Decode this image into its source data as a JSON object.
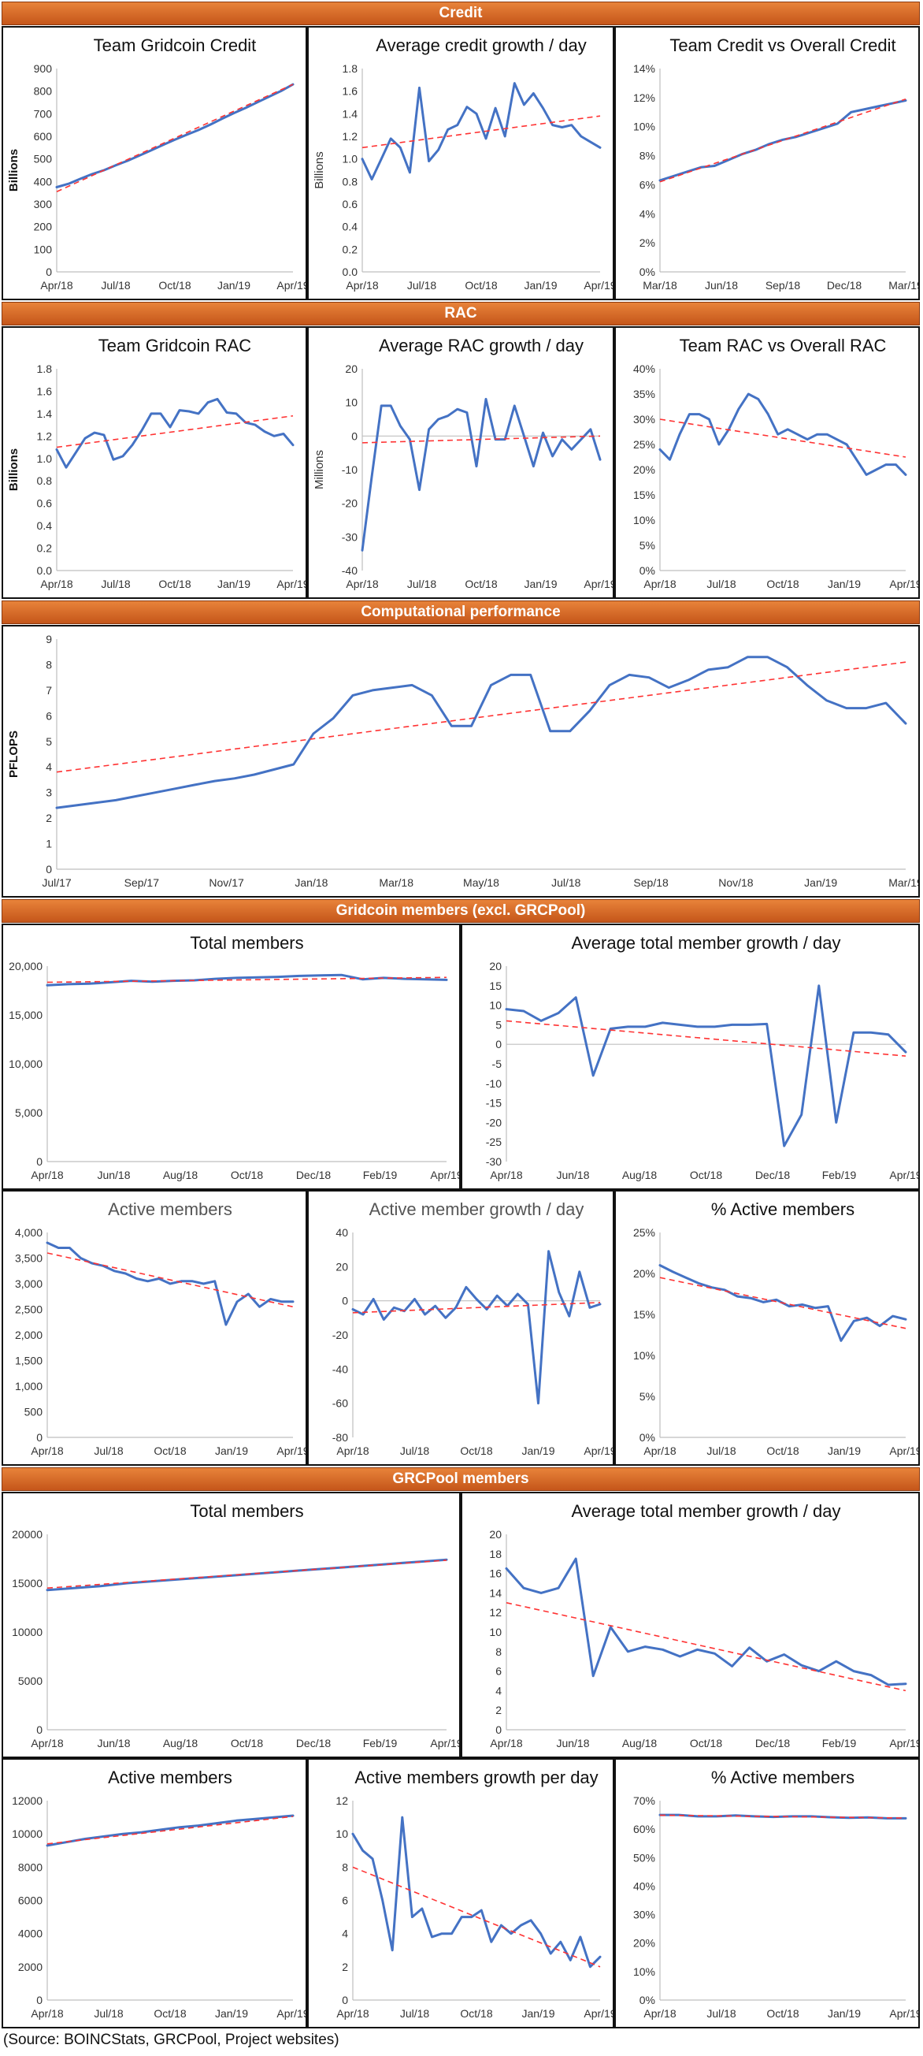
{
  "sections": [
    {
      "title": "Credit"
    },
    {
      "title": "RAC"
    },
    {
      "title": "Computational performance"
    },
    {
      "title": "Gridcoin members (excl. GRCPool)"
    },
    {
      "title": "GRCPool members"
    }
  ],
  "source": "(Source: BOINCStats, GRCPool, Project websites)",
  "colors": {
    "series": "#4472c4",
    "trend": "#ff3333",
    "header": "#d9662a"
  },
  "chart_data": [
    {
      "id": "team_credit",
      "type": "line",
      "title": "Team Gridcoin Credit",
      "ylabel": "Billions",
      "ylabel_bold": true,
      "ylim": [
        0,
        900
      ],
      "yticks": [
        0,
        100,
        200,
        300,
        400,
        500,
        600,
        700,
        800,
        900
      ],
      "ytick_labels": [
        "0",
        "100",
        "200",
        "300",
        "400",
        "500",
        "600",
        "700",
        "800",
        "900"
      ],
      "xtick_labels": [
        "Apr/18",
        "Jul/18",
        "Oct/18",
        "Jan/19",
        "Apr/19"
      ],
      "values": [
        375,
        390,
        412,
        433,
        450,
        472,
        492,
        515,
        538,
        562,
        585,
        607,
        628,
        652,
        678,
        703,
        726,
        751,
        776,
        801,
        830
      ],
      "trend": [
        355,
        830
      ],
      "trend_style": "purple-dash"
    },
    {
      "id": "avg_credit_growth",
      "type": "line",
      "title": "Average credit growth / day",
      "ylabel": "Billions",
      "ylabel_bold": false,
      "ylim": [
        0,
        1.8
      ],
      "yticks": [
        0,
        0.2,
        0.4,
        0.6,
        0.8,
        1.0,
        1.2,
        1.4,
        1.6,
        1.8
      ],
      "ytick_labels": [
        "0.0",
        "0.2",
        "0.4",
        "0.6",
        "0.8",
        "1.0",
        "1.2",
        "1.4",
        "1.6",
        "1.8"
      ],
      "xtick_labels": [
        "Apr/18",
        "Jul/18",
        "Oct/18",
        "Jan/19",
        "Apr/19"
      ],
      "values": [
        1.0,
        0.82,
        1.0,
        1.18,
        1.1,
        0.88,
        1.63,
        0.98,
        1.08,
        1.26,
        1.3,
        1.46,
        1.4,
        1.18,
        1.45,
        1.2,
        1.67,
        1.48,
        1.58,
        1.45,
        1.3,
        1.28,
        1.3,
        1.2,
        1.15,
        1.1
      ],
      "trend": [
        1.1,
        1.38
      ]
    },
    {
      "id": "credit_share",
      "type": "line",
      "title": "Team Credit vs Overall Credit",
      "ylim": [
        0,
        14
      ],
      "yticks": [
        0,
        2,
        4,
        6,
        8,
        10,
        12,
        14
      ],
      "ytick_labels": [
        "0%",
        "2%",
        "4%",
        "6%",
        "8%",
        "10%",
        "12%",
        "14%"
      ],
      "xtick_labels": [
        "Mar/18",
        "Jun/18",
        "Sep/18",
        "Dec/18",
        "Mar/19"
      ],
      "values": [
        6.3,
        6.6,
        6.9,
        7.2,
        7.3,
        7.7,
        8.1,
        8.4,
        8.8,
        9.1,
        9.3,
        9.6,
        9.9,
        10.2,
        11.0,
        11.2,
        11.4,
        11.6,
        11.8
      ],
      "trend": [
        6.2,
        11.9
      ]
    },
    {
      "id": "team_rac",
      "type": "line",
      "title": "Team Gridcoin RAC",
      "ylabel": "Billions",
      "ylabel_bold": true,
      "ylim": [
        0,
        1.8
      ],
      "yticks": [
        0,
        0.2,
        0.4,
        0.6,
        0.8,
        1.0,
        1.2,
        1.4,
        1.6,
        1.8
      ],
      "ytick_labels": [
        "0.0",
        "0.2",
        "0.4",
        "0.6",
        "0.8",
        "1.0",
        "1.2",
        "1.4",
        "1.6",
        "1.8"
      ],
      "xtick_labels": [
        "Apr/18",
        "Jul/18",
        "Oct/18",
        "Jan/19",
        "Apr/19"
      ],
      "values": [
        1.08,
        0.92,
        1.05,
        1.18,
        1.23,
        1.21,
        0.99,
        1.02,
        1.12,
        1.25,
        1.4,
        1.4,
        1.28,
        1.43,
        1.42,
        1.4,
        1.5,
        1.53,
        1.41,
        1.4,
        1.32,
        1.3,
        1.24,
        1.2,
        1.22,
        1.12
      ],
      "trend": [
        1.1,
        1.38
      ]
    },
    {
      "id": "avg_rac_growth",
      "type": "line",
      "title": "Average RAC growth / day",
      "ylabel": "Millions",
      "ylabel_bold": false,
      "ylim": [
        -40,
        20
      ],
      "yticks": [
        -40,
        -30,
        -20,
        -10,
        0,
        10,
        20
      ],
      "ytick_labels": [
        "-40",
        "-30",
        "-20",
        "-10",
        "0",
        "10",
        "20"
      ],
      "xtick_labels": [
        "Apr/18",
        "Jul/18",
        "Oct/18",
        "Jan/19",
        "Apr/19"
      ],
      "values": [
        -34,
        -12,
        9,
        9,
        3,
        -1,
        -16,
        2,
        5,
        6,
        8,
        7,
        -9,
        11,
        -1,
        -1,
        9,
        0,
        -9,
        1,
        -6,
        -1,
        -4,
        -1,
        2,
        -7
      ],
      "trend": [
        -2,
        0
      ]
    },
    {
      "id": "rac_share",
      "type": "line",
      "title": "Team RAC vs Overall RAC",
      "ylim": [
        0,
        40
      ],
      "yticks": [
        0,
        5,
        10,
        15,
        20,
        25,
        30,
        35,
        40
      ],
      "ytick_labels": [
        "0%",
        "5%",
        "10%",
        "15%",
        "20%",
        "25%",
        "30%",
        "35%",
        "40%"
      ],
      "xtick_labels": [
        "Apr/18",
        "Jul/18",
        "Oct/18",
        "Jan/19",
        "Apr/19"
      ],
      "values": [
        24,
        22,
        27,
        31,
        31,
        30,
        25,
        28,
        32,
        35,
        34,
        31,
        27,
        28,
        27,
        26,
        27,
        27,
        26,
        25,
        22,
        19,
        20,
        21,
        21,
        19
      ],
      "trend": [
        30,
        22.5
      ]
    },
    {
      "id": "pflops",
      "type": "line",
      "ylabel": "PFLOPS",
      "ylabel_bold": true,
      "ylim": [
        0,
        9
      ],
      "yticks": [
        0,
        1,
        2,
        3,
        4,
        5,
        6,
        7,
        8,
        9
      ],
      "ytick_labels": [
        "0",
        "1",
        "2",
        "3",
        "4",
        "5",
        "6",
        "7",
        "8",
        "9"
      ],
      "xtick_labels": [
        "Jul/17",
        "Sep/17",
        "Nov/17",
        "Jan/18",
        "Mar/18",
        "May/18",
        "Jul/18",
        "Sep/18",
        "Nov/18",
        "Jan/19",
        "Mar/19"
      ],
      "values": [
        2.4,
        2.5,
        2.6,
        2.7,
        2.85,
        3.0,
        3.15,
        3.3,
        3.45,
        3.55,
        3.7,
        3.9,
        4.1,
        5.3,
        5.9,
        6.8,
        7.0,
        7.1,
        7.2,
        6.8,
        5.6,
        5.6,
        7.2,
        7.6,
        7.6,
        5.4,
        5.4,
        6.2,
        7.2,
        7.6,
        7.5,
        7.1,
        7.4,
        7.8,
        7.9,
        8.3,
        8.3,
        7.9,
        7.2,
        6.6,
        6.3,
        6.3,
        6.5,
        5.7
      ],
      "trend": [
        3.8,
        8.1
      ]
    },
    {
      "id": "grc_total",
      "type": "line",
      "title": "Total members",
      "ylim": [
        0,
        20000
      ],
      "yticks": [
        0,
        5000,
        10000,
        15000,
        20000
      ],
      "ytick_labels": [
        "0",
        "5,000",
        "10,000",
        "15,000",
        "20,000"
      ],
      "xtick_labels": [
        "Apr/18",
        "Jun/18",
        "Aug/18",
        "Oct/18",
        "Dec/18",
        "Feb/19",
        "Apr/19"
      ],
      "values": [
        18050,
        18150,
        18200,
        18350,
        18500,
        18400,
        18500,
        18550,
        18700,
        18800,
        18850,
        18900,
        19000,
        19050,
        19100,
        18650,
        18800,
        18700,
        18650,
        18600
      ],
      "trend": [
        18350,
        18850
      ]
    },
    {
      "id": "grc_total_growth",
      "type": "line",
      "title": "Average total member growth / day",
      "ylim": [
        -30,
        20
      ],
      "yticks": [
        -30,
        -25,
        -20,
        -15,
        -10,
        -5,
        0,
        5,
        10,
        15,
        20
      ],
      "ytick_labels": [
        "-30",
        "-25",
        "-20",
        "-15",
        "-10",
        "-5",
        "0",
        "5",
        "10",
        "15",
        "20"
      ],
      "xtick_labels": [
        "Apr/18",
        "Jun/18",
        "Aug/18",
        "Oct/18",
        "Dec/18",
        "Feb/19",
        "Apr/19"
      ],
      "values": [
        9,
        8.5,
        6,
        8,
        12,
        -8,
        4,
        4.5,
        4.5,
        5.5,
        5,
        4.5,
        4.5,
        5,
        5,
        5.2,
        -26,
        -18,
        15,
        -20,
        3,
        3,
        2.5,
        -2
      ],
      "trend": [
        6,
        -3
      ]
    },
    {
      "id": "grc_active",
      "type": "line",
      "title": "Active members",
      "title_grey": true,
      "ylim": [
        0,
        4000
      ],
      "yticks": [
        0,
        500,
        1000,
        1500,
        2000,
        2500,
        3000,
        3500,
        4000
      ],
      "ytick_labels": [
        "0",
        "500",
        "1,000",
        "1,500",
        "2,000",
        "2,500",
        "3,000",
        "3,500",
        "4,000"
      ],
      "xtick_labels": [
        "Apr/18",
        "Jul/18",
        "Oct/18",
        "Jan/19",
        "Apr/19"
      ],
      "values": [
        3800,
        3700,
        3700,
        3500,
        3400,
        3350,
        3250,
        3200,
        3100,
        3050,
        3100,
        3000,
        3050,
        3050,
        3000,
        3050,
        2200,
        2650,
        2800,
        2550,
        2700,
        2650,
        2650
      ],
      "trend": [
        3600,
        2550
      ]
    },
    {
      "id": "grc_active_growth",
      "type": "line",
      "title": "Active member growth / day",
      "title_grey": true,
      "ylim": [
        -80,
        40
      ],
      "yticks": [
        -80,
        -60,
        -40,
        -20,
        0,
        20,
        40
      ],
      "ytick_labels": [
        "-80",
        "-60",
        "-40",
        "-20",
        "0",
        "20",
        "40"
      ],
      "xtick_labels": [
        "Apr/18",
        "Jul/18",
        "Oct/18",
        "Jan/19",
        "Apr/19"
      ],
      "values": [
        -5,
        -8,
        1,
        -11,
        -4,
        -6,
        1,
        -8,
        -3,
        -10,
        -4,
        8,
        1,
        -5,
        3,
        -3,
        4,
        -2,
        -60,
        29,
        5,
        -9,
        17,
        -4,
        -2
      ],
      "trend": [
        -7,
        -1
      ]
    },
    {
      "id": "grc_active_pct",
      "type": "line",
      "title": "% Active members",
      "ylim": [
        0,
        25
      ],
      "yticks": [
        0,
        5,
        10,
        15,
        20,
        25
      ],
      "ytick_labels": [
        "0%",
        "5%",
        "10%",
        "15%",
        "20%",
        "25%"
      ],
      "xtick_labels": [
        "Apr/18",
        "Jul/18",
        "Oct/18",
        "Jan/19",
        "Apr/19"
      ],
      "values": [
        21,
        20.2,
        19.5,
        18.8,
        18.3,
        18,
        17.2,
        17,
        16.5,
        16.8,
        16,
        16.2,
        15.8,
        16,
        11.8,
        14.2,
        14.6,
        13.6,
        14.8,
        14.4
      ],
      "trend": [
        19.5,
        13.3
      ]
    },
    {
      "id": "pool_total",
      "type": "line",
      "title": "Total members",
      "ylim": [
        0,
        20000
      ],
      "yticks": [
        0,
        5000,
        10000,
        15000,
        20000
      ],
      "ytick_labels": [
        "0",
        "5000",
        "10000",
        "15000",
        "20000"
      ],
      "xtick_labels": [
        "Apr/18",
        "Jun/18",
        "Aug/18",
        "Oct/18",
        "Dec/18",
        "Feb/19",
        "Apr/19"
      ],
      "values": [
        14300,
        14500,
        14700,
        15000,
        15200,
        15400,
        15600,
        15800,
        16000,
        16200,
        16400,
        16600,
        16800,
        17000,
        17200,
        17400
      ],
      "trend": [
        14500,
        17350
      ],
      "trend_style": "purple-dash"
    },
    {
      "id": "pool_total_growth",
      "type": "line",
      "title": "Average total member growth / day",
      "ylim": [
        0,
        20
      ],
      "yticks": [
        0,
        2,
        4,
        6,
        8,
        10,
        12,
        14,
        16,
        18,
        20
      ],
      "ytick_labels": [
        "0",
        "2",
        "4",
        "6",
        "8",
        "10",
        "12",
        "14",
        "16",
        "18",
        "20"
      ],
      "xtick_labels": [
        "Apr/18",
        "Jun/18",
        "Aug/18",
        "Oct/18",
        "Dec/18",
        "Feb/19",
        "Apr/19"
      ],
      "values": [
        16.5,
        14.5,
        14,
        14.5,
        17.5,
        5.5,
        10.5,
        8,
        8.5,
        8.2,
        7.5,
        8.2,
        7.8,
        6.5,
        8.4,
        7,
        7.7,
        6.6,
        6,
        7,
        6,
        5.6,
        4.6,
        4.7
      ],
      "trend": [
        13,
        4
      ]
    },
    {
      "id": "pool_active",
      "type": "line",
      "title": "Active members",
      "ylim": [
        0,
        12000
      ],
      "yticks": [
        0,
        2000,
        4000,
        6000,
        8000,
        10000,
        12000
      ],
      "ytick_labels": [
        "0",
        "2000",
        "4000",
        "6000",
        "8000",
        "10000",
        "12000"
      ],
      "xtick_labels": [
        "Apr/18",
        "Jul/18",
        "Oct/18",
        "Jan/19",
        "Apr/19"
      ],
      "values": [
        9300,
        9500,
        9700,
        9850,
        10000,
        10100,
        10250,
        10400,
        10500,
        10650,
        10800,
        10900,
        11000,
        11100
      ],
      "trend": [
        9400,
        11050
      ],
      "trend_style": "purple-dash"
    },
    {
      "id": "pool_active_growth",
      "type": "line",
      "title": "Active members growth per day",
      "ylim": [
        0,
        12
      ],
      "yticks": [
        0,
        2,
        4,
        6,
        8,
        10,
        12
      ],
      "ytick_labels": [
        "0",
        "2",
        "4",
        "6",
        "8",
        "10",
        "12"
      ],
      "xtick_labels": [
        "Apr/18",
        "Jul/18",
        "Oct/18",
        "Jan/19",
        "Apr/19"
      ],
      "values": [
        10,
        9,
        8.5,
        6,
        3,
        11,
        5,
        5.5,
        3.8,
        4,
        4,
        5,
        5,
        5.4,
        3.5,
        4.5,
        4,
        4.5,
        4.8,
        4,
        2.8,
        3.5,
        2.4,
        3.8,
        2,
        2.6
      ],
      "trend": [
        8,
        2
      ]
    },
    {
      "id": "pool_active_pct",
      "type": "line",
      "title": "% Active members",
      "ylim": [
        0,
        70
      ],
      "yticks": [
        0,
        10,
        20,
        30,
        40,
        50,
        60,
        70
      ],
      "ytick_labels": [
        "0%",
        "10%",
        "20%",
        "30%",
        "40%",
        "50%",
        "60%",
        "70%"
      ],
      "xtick_labels": [
        "Apr/18",
        "Jul/18",
        "Oct/18",
        "Jan/19",
        "Apr/19"
      ],
      "values": [
        65,
        65,
        64.5,
        64.5,
        64.8,
        64.5,
        64.3,
        64.5,
        64.5,
        64.2,
        64,
        64.1,
        63.8,
        63.8
      ],
      "trend": [
        64.9,
        63.9
      ],
      "trend_style": "purple-dash"
    }
  ]
}
